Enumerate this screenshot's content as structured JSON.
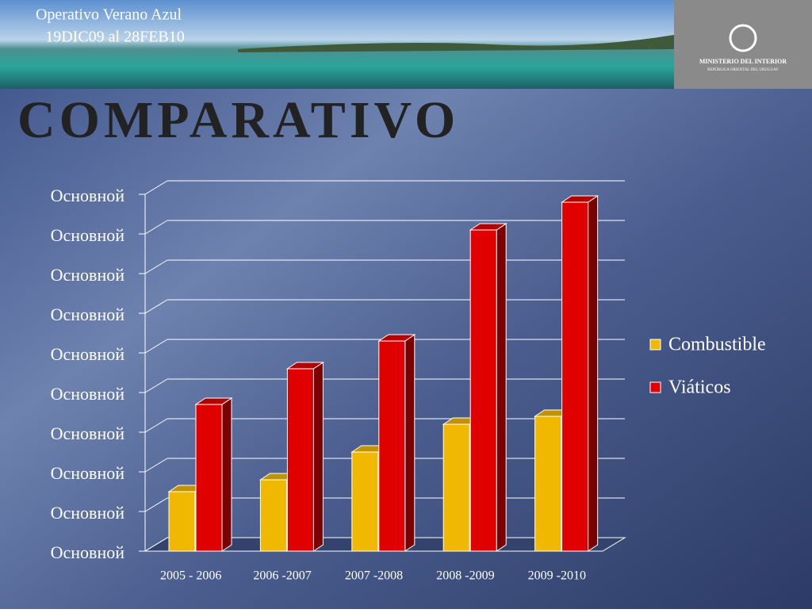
{
  "header": {
    "title_line1": "Operativo Verano Azul",
    "title_line2": "19DIC09 al  28FEB10",
    "logo_name": "MINISTERIO DEL INTERIOR",
    "logo_sub": "REPÚBLICA ORIENTAL DEL URUGUAY"
  },
  "slide_title": "COMPARATIVO",
  "chart_data": {
    "type": "bar3d",
    "categories": [
      "2005 - 2006",
      "2006 -2007",
      "2007 -2008",
      "2008 -2009",
      "2009 -2010"
    ],
    "series": [
      {
        "name": "Combustible",
        "color": "#f0b800",
        "values": [
          1.5,
          1.8,
          2.5,
          3.2,
          3.4
        ]
      },
      {
        "name": "Viáticos",
        "color": "#e00000",
        "values": [
          3.7,
          4.6,
          5.3,
          8.1,
          8.8
        ]
      }
    ],
    "ylim": [
      0,
      9
    ],
    "yticks": [
      {
        "value": 0,
        "label": "Основной"
      },
      {
        "value": 1,
        "label": "Основной"
      },
      {
        "value": 2,
        "label": "Основной"
      },
      {
        "value": 3,
        "label": "Основной"
      },
      {
        "value": 4,
        "label": "Основной"
      },
      {
        "value": 5,
        "label": "Основной"
      },
      {
        "value": 6,
        "label": "Основной"
      },
      {
        "value": 7,
        "label": "Основной"
      },
      {
        "value": 8,
        "label": "Основной"
      },
      {
        "value": 9,
        "label": "Основной"
      }
    ],
    "grid": true,
    "legend": "right"
  }
}
